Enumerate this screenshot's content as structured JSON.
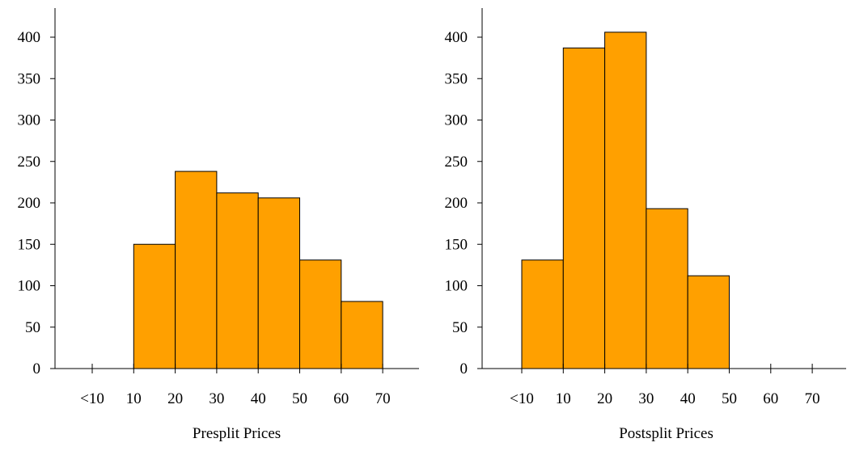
{
  "chart_data": [
    {
      "type": "bar",
      "xlabel": "Presplit Prices",
      "ylabel": "",
      "ylim": [
        0,
        400
      ],
      "yticks": [
        0,
        50,
        100,
        150,
        200,
        250,
        300,
        350,
        400
      ],
      "xtick_labels": [
        "<10",
        "10",
        "20",
        "30",
        "40",
        "50",
        "60",
        "70"
      ],
      "bins": [
        "10-20",
        "20-30",
        "30-40",
        "40-50",
        "50-60",
        "60-70"
      ],
      "values": [
        150,
        238,
        212,
        206,
        131,
        81
      ],
      "bar_color": "#ffa000",
      "grid": false
    },
    {
      "type": "bar",
      "xlabel": "Postsplit Prices",
      "ylabel": "",
      "ylim": [
        0,
        400
      ],
      "yticks": [
        0,
        50,
        100,
        150,
        200,
        250,
        300,
        350,
        400
      ],
      "xtick_labels": [
        "<10",
        "10",
        "20",
        "30",
        "40",
        "50",
        "60",
        "70"
      ],
      "bins": [
        "<10-10",
        "10-20",
        "20-30",
        "30-40",
        "40-50"
      ],
      "values": [
        131,
        387,
        406,
        193,
        112
      ],
      "bar_color": "#ffa000",
      "grid": false
    }
  ]
}
